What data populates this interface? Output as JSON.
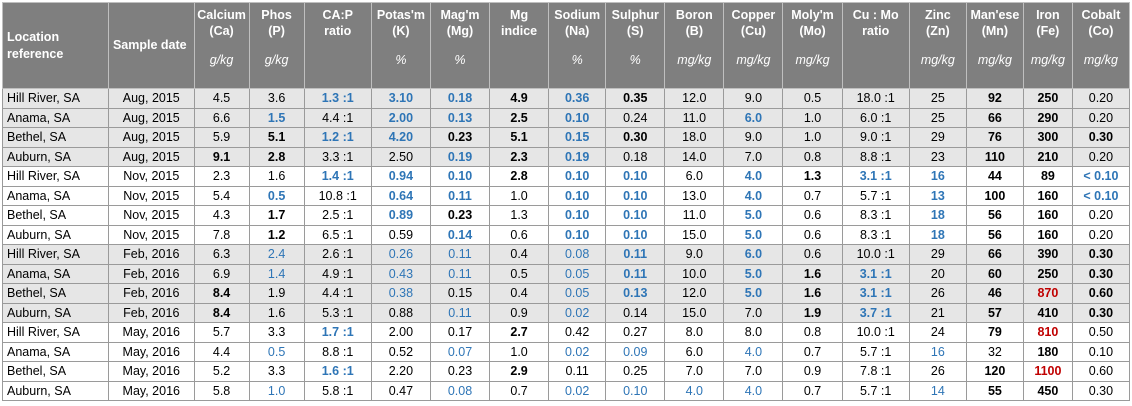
{
  "headers": [
    {
      "lines": [
        "Location",
        "reference"
      ],
      "unit": ""
    },
    {
      "lines": [
        "Sample date"
      ],
      "unit": ""
    },
    {
      "lines": [
        "Calcium",
        "(Ca)"
      ],
      "unit": "g/kg"
    },
    {
      "lines": [
        "Phos",
        "(P)"
      ],
      "unit": "g/kg"
    },
    {
      "lines": [
        "CA:P",
        "ratio"
      ],
      "unit": ""
    },
    {
      "lines": [
        "Potas'm",
        "(K)"
      ],
      "unit": "%"
    },
    {
      "lines": [
        "Mag'm",
        "(Mg)"
      ],
      "unit": "%"
    },
    {
      "lines": [
        "Mg",
        "indice"
      ],
      "unit": ""
    },
    {
      "lines": [
        "Sodium",
        "(Na)"
      ],
      "unit": "%"
    },
    {
      "lines": [
        "Sulphur",
        "(S)"
      ],
      "unit": "%"
    },
    {
      "lines": [
        "Boron",
        "(B)"
      ],
      "unit": "mg/kg"
    },
    {
      "lines": [
        "Copper",
        "(Cu)"
      ],
      "unit": "mg/kg"
    },
    {
      "lines": [
        "Moly'm",
        "(Mo)"
      ],
      "unit": "mg/kg"
    },
    {
      "lines": [
        "Cu : Mo",
        "ratio"
      ],
      "unit": ""
    },
    {
      "lines": [
        "Zinc",
        "(Zn)"
      ],
      "unit": "mg/kg"
    },
    {
      "lines": [
        "Man'ese",
        "(Mn)"
      ],
      "unit": "mg/kg"
    },
    {
      "lines": [
        "Iron",
        "(Fe)"
      ],
      "unit": "mg/kg"
    },
    {
      "lines": [
        "Cobalt",
        "(Co)"
      ],
      "unit": "mg/kg"
    }
  ],
  "rows": [
    {
      "shade": true,
      "cells": [
        [
          "Hill River, SA"
        ],
        [
          "Aug, 2015"
        ],
        [
          "4.5"
        ],
        [
          "3.6"
        ],
        [
          "1.3 :1",
          "bl b"
        ],
        [
          "3.10",
          "bl b"
        ],
        [
          "0.18",
          "bl b"
        ],
        [
          "4.9",
          "b"
        ],
        [
          "0.36",
          "bl b"
        ],
        [
          "0.35",
          "b"
        ],
        [
          "12.0"
        ],
        [
          "9.0"
        ],
        [
          "0.5"
        ],
        [
          "18.0 :1"
        ],
        [
          "25"
        ],
        [
          "92",
          "b"
        ],
        [
          "250",
          "b"
        ],
        [
          "0.20"
        ]
      ]
    },
    {
      "shade": true,
      "cells": [
        [
          "Anama, SA"
        ],
        [
          "Aug, 2015"
        ],
        [
          "6.6"
        ],
        [
          "1.5",
          "bl b"
        ],
        [
          "4.4 :1"
        ],
        [
          "2.00",
          "bl b"
        ],
        [
          "0.13",
          "bl b"
        ],
        [
          "2.5",
          "b"
        ],
        [
          "0.10",
          "bl b"
        ],
        [
          "0.24"
        ],
        [
          "11.0"
        ],
        [
          "6.0",
          "bl b"
        ],
        [
          "1.0"
        ],
        [
          "6.0 :1"
        ],
        [
          "25"
        ],
        [
          "66",
          "b"
        ],
        [
          "290",
          "b"
        ],
        [
          "0.20"
        ]
      ]
    },
    {
      "shade": true,
      "cells": [
        [
          "Bethel, SA"
        ],
        [
          "Aug, 2015"
        ],
        [
          "5.9"
        ],
        [
          "5.1",
          "b"
        ],
        [
          "1.2 :1",
          "bl b"
        ],
        [
          "4.20",
          "bl b"
        ],
        [
          "0.23",
          "b"
        ],
        [
          "5.1",
          "b"
        ],
        [
          "0.15",
          "bl b"
        ],
        [
          "0.30",
          "b"
        ],
        [
          "18.0"
        ],
        [
          "9.0"
        ],
        [
          "1.0"
        ],
        [
          "9.0 :1"
        ],
        [
          "29"
        ],
        [
          "76",
          "b"
        ],
        [
          "300",
          "b"
        ],
        [
          "0.30",
          "b"
        ]
      ]
    },
    {
      "shade": true,
      "cells": [
        [
          "Auburn, SA"
        ],
        [
          "Aug, 2015"
        ],
        [
          "9.1",
          "b"
        ],
        [
          "2.8",
          "b"
        ],
        [
          "3.3 :1"
        ],
        [
          "2.50"
        ],
        [
          "0.19",
          "bl b"
        ],
        [
          "2.3",
          "b"
        ],
        [
          "0.19",
          "bl b"
        ],
        [
          "0.18"
        ],
        [
          "14.0"
        ],
        [
          "7.0"
        ],
        [
          "0.8"
        ],
        [
          "8.8 :1"
        ],
        [
          "23"
        ],
        [
          "110",
          "b"
        ],
        [
          "210",
          "b"
        ],
        [
          "0.20"
        ]
      ]
    },
    {
      "shade": false,
      "cells": [
        [
          "Hill River, SA"
        ],
        [
          "Nov, 2015"
        ],
        [
          "2.3"
        ],
        [
          "1.6"
        ],
        [
          "1.4 :1",
          "bl b"
        ],
        [
          "0.94",
          "bl b"
        ],
        [
          "0.10",
          "bl b"
        ],
        [
          "2.8",
          "b"
        ],
        [
          "0.10",
          "bl b"
        ],
        [
          "0.10",
          "bl b"
        ],
        [
          "6.0"
        ],
        [
          "4.0",
          "bl b"
        ],
        [
          "1.3",
          "b"
        ],
        [
          "3.1 :1",
          "bl b"
        ],
        [
          "16",
          "bl b"
        ],
        [
          "44",
          "b"
        ],
        [
          "89",
          "b"
        ],
        [
          "< 0.10",
          "bl b"
        ]
      ]
    },
    {
      "shade": false,
      "cells": [
        [
          "Anama, SA"
        ],
        [
          "Nov, 2015"
        ],
        [
          "5.4"
        ],
        [
          "0.5",
          "bl b"
        ],
        [
          "10.8 :1"
        ],
        [
          "0.64",
          "bl b"
        ],
        [
          "0.11",
          "bl b"
        ],
        [
          "1.0"
        ],
        [
          "0.10",
          "bl b"
        ],
        [
          "0.10",
          "bl b"
        ],
        [
          "13.0"
        ],
        [
          "4.0",
          "bl b"
        ],
        [
          "0.7"
        ],
        [
          "5.7 :1"
        ],
        [
          "13",
          "bl b"
        ],
        [
          "100",
          "b"
        ],
        [
          "160",
          "b"
        ],
        [
          "< 0.10",
          "bl b"
        ]
      ]
    },
    {
      "shade": false,
      "cells": [
        [
          "Bethel, SA"
        ],
        [
          "Nov, 2015"
        ],
        [
          "4.3"
        ],
        [
          "1.7",
          "b"
        ],
        [
          "2.5 :1"
        ],
        [
          "0.89",
          "bl b"
        ],
        [
          "0.23",
          "b"
        ],
        [
          "1.3"
        ],
        [
          "0.10",
          "bl b"
        ],
        [
          "0.10",
          "bl b"
        ],
        [
          "11.0"
        ],
        [
          "5.0",
          "bl b"
        ],
        [
          "0.6"
        ],
        [
          "8.3 :1"
        ],
        [
          "18",
          "bl b"
        ],
        [
          "56",
          "b"
        ],
        [
          "160",
          "b"
        ],
        [
          "0.20"
        ]
      ]
    },
    {
      "shade": false,
      "cells": [
        [
          "Auburn, SA"
        ],
        [
          "Nov, 2015"
        ],
        [
          "7.8"
        ],
        [
          "1.2",
          "b"
        ],
        [
          "6.5 :1"
        ],
        [
          "0.59"
        ],
        [
          "0.14",
          "bl b"
        ],
        [
          "0.6"
        ],
        [
          "0.10",
          "bl b"
        ],
        [
          "0.10",
          "bl b"
        ],
        [
          "15.0"
        ],
        [
          "5.0",
          "bl b"
        ],
        [
          "0.6"
        ],
        [
          "8.3 :1"
        ],
        [
          "18",
          "bl b"
        ],
        [
          "56",
          "b"
        ],
        [
          "160",
          "b"
        ],
        [
          "0.20"
        ]
      ]
    },
    {
      "shade": true,
      "cells": [
        [
          "Hill River, SA"
        ],
        [
          "Feb, 2016"
        ],
        [
          "6.3"
        ],
        [
          "2.4",
          "bl"
        ],
        [
          "2.6 :1"
        ],
        [
          "0.26",
          "bl"
        ],
        [
          "0.11",
          "bl"
        ],
        [
          "0.4"
        ],
        [
          "0.08",
          "bl"
        ],
        [
          "0.11",
          "bl b"
        ],
        [
          "9.0"
        ],
        [
          "6.0",
          "bl b"
        ],
        [
          "0.6"
        ],
        [
          "10.0 :1"
        ],
        [
          "29"
        ],
        [
          "66",
          "b"
        ],
        [
          "390",
          "b"
        ],
        [
          "0.30",
          "b"
        ]
      ]
    },
    {
      "shade": true,
      "cells": [
        [
          "Anama, SA"
        ],
        [
          "Feb, 2016"
        ],
        [
          "6.9"
        ],
        [
          "1.4",
          "bl"
        ],
        [
          "4.9 :1"
        ],
        [
          "0.43",
          "bl"
        ],
        [
          "0.11",
          "bl"
        ],
        [
          "0.5"
        ],
        [
          "0.05",
          "bl"
        ],
        [
          "0.11",
          "bl b"
        ],
        [
          "10.0"
        ],
        [
          "5.0",
          "bl b"
        ],
        [
          "1.6",
          "b"
        ],
        [
          "3.1 :1",
          "bl b"
        ],
        [
          "20"
        ],
        [
          "60",
          "b"
        ],
        [
          "250",
          "b"
        ],
        [
          "0.30",
          "b"
        ]
      ]
    },
    {
      "shade": true,
      "cells": [
        [
          "Bethel, SA"
        ],
        [
          "Feb, 2016"
        ],
        [
          "8.4",
          "b"
        ],
        [
          "1.9"
        ],
        [
          "4.4 :1"
        ],
        [
          "0.38",
          "bl"
        ],
        [
          "0.15"
        ],
        [
          "0.4"
        ],
        [
          "0.05",
          "bl"
        ],
        [
          "0.13",
          "bl b"
        ],
        [
          "12.0"
        ],
        [
          "5.0",
          "bl b"
        ],
        [
          "1.6",
          "b"
        ],
        [
          "3.1 :1",
          "bl b"
        ],
        [
          "26"
        ],
        [
          "46",
          "b"
        ],
        [
          "870",
          "rd b"
        ],
        [
          "0.60",
          "b"
        ]
      ]
    },
    {
      "shade": true,
      "cells": [
        [
          "Auburn, SA"
        ],
        [
          "Feb, 2016"
        ],
        [
          "8.4",
          "b"
        ],
        [
          "1.6"
        ],
        [
          "5.3 :1"
        ],
        [
          "0.88"
        ],
        [
          "0.11",
          "bl"
        ],
        [
          "0.9"
        ],
        [
          "0.02",
          "bl"
        ],
        [
          "0.14"
        ],
        [
          "15.0"
        ],
        [
          "7.0"
        ],
        [
          "1.9",
          "b"
        ],
        [
          "3.7 :1",
          "bl b"
        ],
        [
          "21"
        ],
        [
          "57",
          "b"
        ],
        [
          "410",
          "b"
        ],
        [
          "0.30",
          "b"
        ]
      ]
    },
    {
      "shade": false,
      "cells": [
        [
          "Hill River, SA"
        ],
        [
          "May, 2016"
        ],
        [
          "5.7"
        ],
        [
          "3.3"
        ],
        [
          "1.7 :1",
          "bl b"
        ],
        [
          "2.00"
        ],
        [
          "0.17"
        ],
        [
          "2.7",
          "b"
        ],
        [
          "0.42"
        ],
        [
          "0.27"
        ],
        [
          "8.0"
        ],
        [
          "8.0"
        ],
        [
          "0.8"
        ],
        [
          "10.0 :1"
        ],
        [
          "24"
        ],
        [
          "79",
          "b"
        ],
        [
          "810",
          "rd b"
        ],
        [
          "0.50"
        ]
      ]
    },
    {
      "shade": false,
      "cells": [
        [
          "Anama, SA"
        ],
        [
          "May, 2016"
        ],
        [
          "4.4"
        ],
        [
          "0.5",
          "bl"
        ],
        [
          "8.8 :1"
        ],
        [
          "0.52"
        ],
        [
          "0.07",
          "bl"
        ],
        [
          "1.0"
        ],
        [
          "0.02",
          "bl"
        ],
        [
          "0.09",
          "bl"
        ],
        [
          "6.0"
        ],
        [
          "4.0",
          "bl"
        ],
        [
          "0.7"
        ],
        [
          "5.7 :1"
        ],
        [
          "16",
          "bl"
        ],
        [
          "32"
        ],
        [
          "180",
          "b"
        ],
        [
          "0.10"
        ]
      ]
    },
    {
      "shade": false,
      "cells": [
        [
          "Bethel, SA"
        ],
        [
          "May, 2016"
        ],
        [
          "5.2"
        ],
        [
          "3.3"
        ],
        [
          "1.6 :1",
          "bl b"
        ],
        [
          "2.20"
        ],
        [
          "0.23"
        ],
        [
          "2.9",
          "b"
        ],
        [
          "0.11"
        ],
        [
          "0.25"
        ],
        [
          "7.0"
        ],
        [
          "7.0"
        ],
        [
          "0.9"
        ],
        [
          "7.8 :1"
        ],
        [
          "26"
        ],
        [
          "120",
          "b"
        ],
        [
          "1100",
          "rd b"
        ],
        [
          "0.60"
        ]
      ]
    },
    {
      "shade": false,
      "cells": [
        [
          "Auburn, SA"
        ],
        [
          "May, 2016"
        ],
        [
          "5.8"
        ],
        [
          "1.0",
          "bl"
        ],
        [
          "5.8 :1"
        ],
        [
          "0.47"
        ],
        [
          "0.08",
          "bl"
        ],
        [
          "0.7"
        ],
        [
          "0.02",
          "bl"
        ],
        [
          "0.10",
          "bl"
        ],
        [
          "4.0",
          "bl"
        ],
        [
          "4.0",
          "bl"
        ],
        [
          "0.7"
        ],
        [
          "5.7 :1"
        ],
        [
          "14",
          "bl"
        ],
        [
          "55",
          "b"
        ],
        [
          "450",
          "b"
        ],
        [
          "0.30"
        ]
      ]
    }
  ]
}
